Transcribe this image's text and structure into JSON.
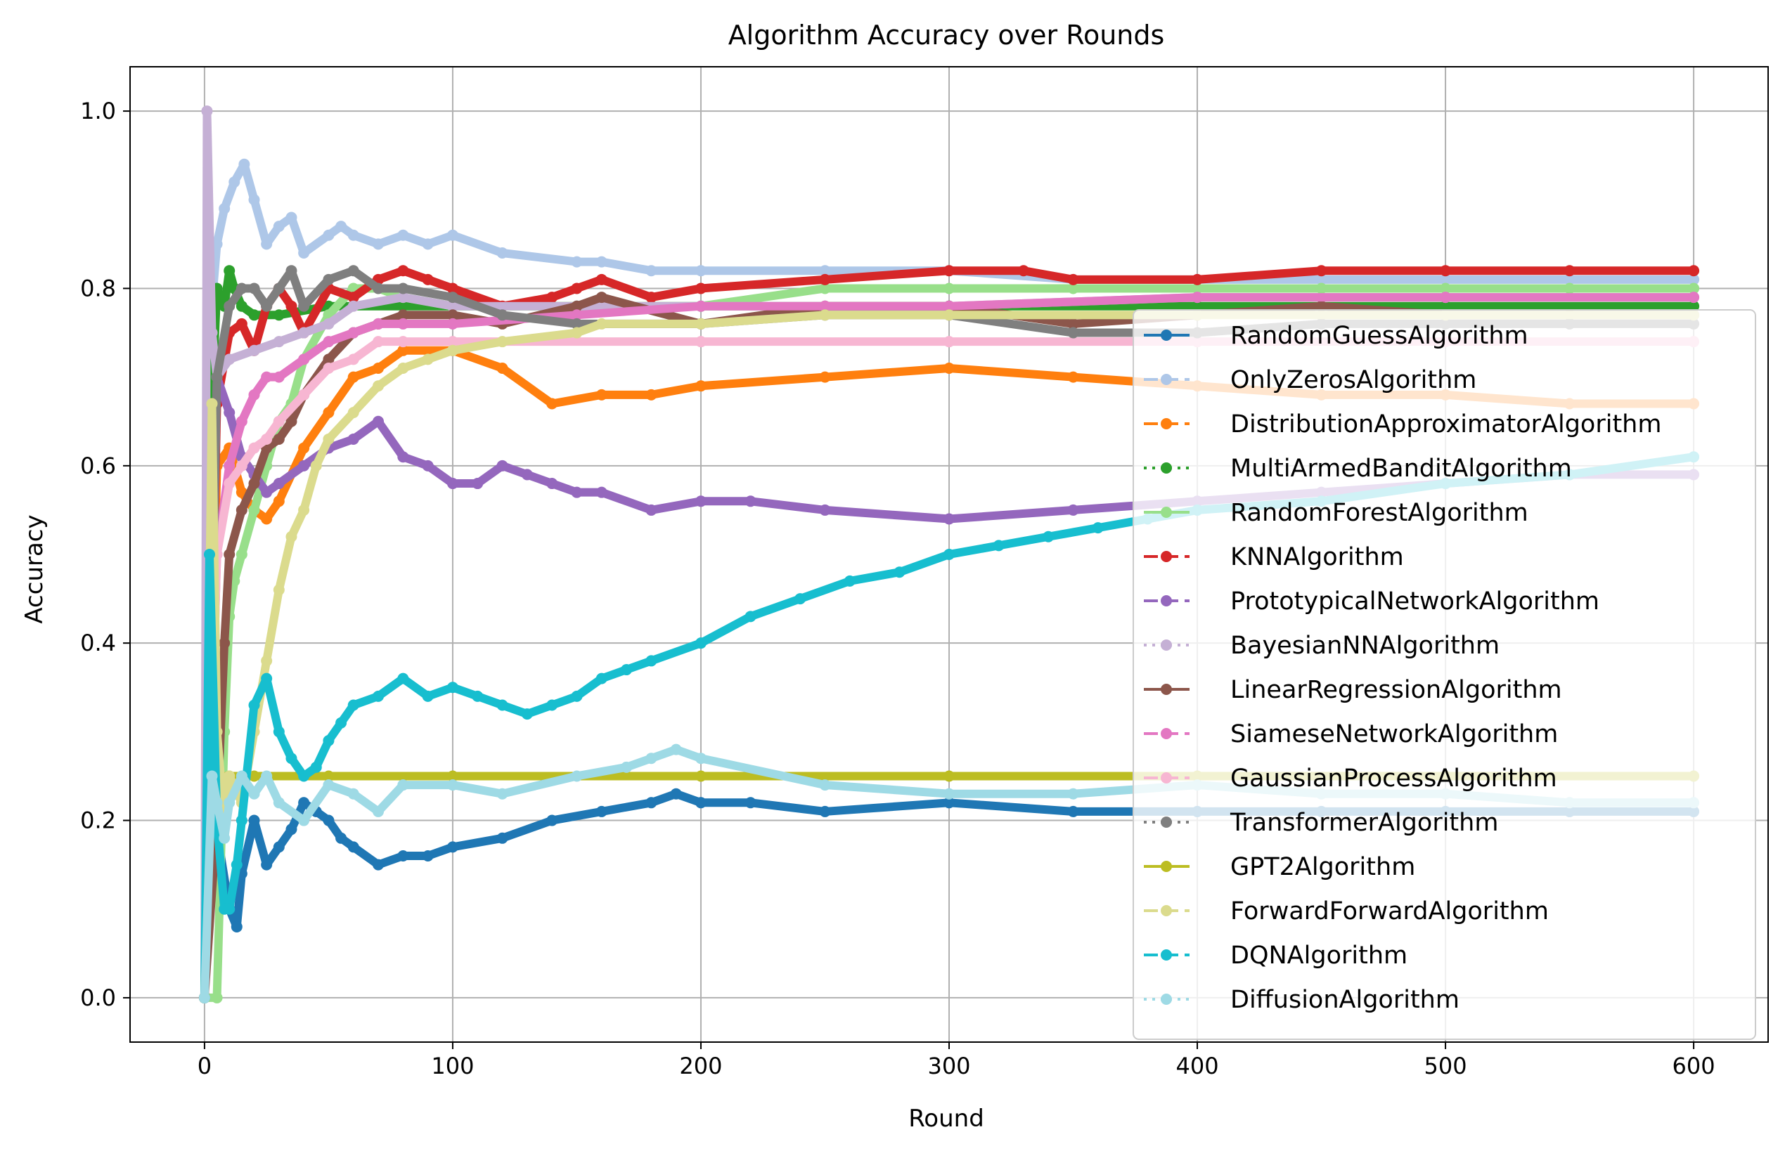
{
  "chart_data": {
    "type": "line",
    "title": "Algorithm Accuracy over Rounds",
    "xlabel": "Round",
    "ylabel": "Accuracy",
    "xlim": [
      -30,
      630
    ],
    "ylim": [
      -0.05,
      1.05
    ],
    "xticks": [
      0,
      100,
      200,
      300,
      400,
      500,
      600
    ],
    "xtick_labels": [
      "0",
      "100",
      "200",
      "300",
      "400",
      "500",
      "600"
    ],
    "yticks": [
      0.0,
      0.2,
      0.4,
      0.6,
      0.8,
      1.0
    ],
    "ytick_labels": [
      "0.0",
      "0.2",
      "0.4",
      "0.6",
      "0.8",
      "1.0"
    ],
    "grid": true,
    "legend_position": "right",
    "series": [
      {
        "name": "RandomGuessAlgorithm",
        "color": "#1f77b4",
        "linestyle": "solid",
        "x": [
          0,
          3,
          6,
          10,
          13,
          15,
          20,
          25,
          30,
          35,
          40,
          45,
          50,
          55,
          60,
          70,
          80,
          90,
          100,
          120,
          140,
          160,
          180,
          190,
          200,
          220,
          250,
          300,
          350,
          400,
          450,
          500,
          550,
          600
        ],
        "y": [
          0,
          0.25,
          0.17,
          0.1,
          0.08,
          0.14,
          0.2,
          0.15,
          0.17,
          0.19,
          0.22,
          0.21,
          0.2,
          0.18,
          0.17,
          0.15,
          0.16,
          0.16,
          0.17,
          0.18,
          0.2,
          0.21,
          0.22,
          0.23,
          0.22,
          0.22,
          0.21,
          0.22,
          0.21,
          0.21,
          0.21,
          0.21,
          0.21,
          0.21
        ]
      },
      {
        "name": "OnlyZerosAlgorithm",
        "color": "#aec7e8",
        "linestyle": "dashed",
        "x": [
          0,
          2,
          5,
          8,
          12,
          16,
          20,
          25,
          30,
          35,
          40,
          50,
          55,
          60,
          70,
          80,
          90,
          100,
          120,
          150,
          160,
          180,
          200,
          250,
          300,
          350,
          400,
          450,
          500,
          550,
          600
        ],
        "y": [
          0,
          0.75,
          0.85,
          0.89,
          0.92,
          0.94,
          0.9,
          0.85,
          0.87,
          0.88,
          0.84,
          0.86,
          0.87,
          0.86,
          0.85,
          0.86,
          0.85,
          0.86,
          0.84,
          0.83,
          0.83,
          0.82,
          0.82,
          0.82,
          0.82,
          0.81,
          0.81,
          0.81,
          0.81,
          0.81,
          0.81
        ]
      },
      {
        "name": "DistributionApproximatorAlgorithm",
        "color": "#ff7f0e",
        "linestyle": "dashed",
        "x": [
          0,
          5,
          10,
          15,
          20,
          25,
          30,
          40,
          50,
          60,
          70,
          80,
          100,
          120,
          140,
          160,
          180,
          200,
          250,
          300,
          350,
          400,
          450,
          500,
          550,
          600
        ],
        "y": [
          0,
          0.6,
          0.62,
          0.57,
          0.55,
          0.54,
          0.56,
          0.62,
          0.66,
          0.7,
          0.71,
          0.73,
          0.73,
          0.71,
          0.67,
          0.68,
          0.68,
          0.69,
          0.7,
          0.71,
          0.7,
          0.69,
          0.68,
          0.68,
          0.67,
          0.67
        ]
      },
      {
        "name": "MultiArmedBanditAlgorithm",
        "color": "#2ca02c",
        "linestyle": "dotted",
        "x": [
          0,
          3,
          5,
          8,
          10,
          12,
          15,
          20,
          30,
          50,
          100,
          200,
          300,
          400,
          500,
          600
        ],
        "y": [
          0,
          0.67,
          0.8,
          0.78,
          0.82,
          0.8,
          0.78,
          0.77,
          0.77,
          0.78,
          0.78,
          0.78,
          0.78,
          0.78,
          0.78,
          0.78
        ]
      },
      {
        "name": "RandomForestAlgorithm",
        "color": "#98df8a",
        "linestyle": "solid",
        "x": [
          0,
          5,
          8,
          10,
          12,
          15,
          20,
          25,
          30,
          35,
          40,
          50,
          60,
          70,
          80,
          100,
          150,
          200,
          250,
          300,
          350,
          400,
          450,
          500,
          550,
          600
        ],
        "y": [
          0,
          0.0,
          0.3,
          0.43,
          0.47,
          0.5,
          0.55,
          0.6,
          0.65,
          0.67,
          0.72,
          0.77,
          0.8,
          0.8,
          0.79,
          0.78,
          0.78,
          0.78,
          0.8,
          0.8,
          0.8,
          0.8,
          0.8,
          0.8,
          0.8,
          0.8
        ]
      },
      {
        "name": "KNNAlgorithm",
        "color": "#d62728",
        "linestyle": "dashed",
        "x": [
          0,
          5,
          10,
          15,
          20,
          25,
          30,
          35,
          40,
          50,
          60,
          70,
          80,
          90,
          100,
          120,
          140,
          150,
          160,
          180,
          200,
          250,
          300,
          330,
          350,
          400,
          450,
          500,
          550,
          600
        ],
        "y": [
          0,
          0.67,
          0.75,
          0.76,
          0.73,
          0.78,
          0.8,
          0.78,
          0.75,
          0.8,
          0.79,
          0.81,
          0.82,
          0.81,
          0.8,
          0.78,
          0.79,
          0.8,
          0.81,
          0.79,
          0.8,
          0.81,
          0.82,
          0.82,
          0.81,
          0.81,
          0.82,
          0.82,
          0.82,
          0.82
        ]
      },
      {
        "name": "PrototypicalNetworkAlgorithm",
        "color": "#9467bd",
        "linestyle": "dashed",
        "x": [
          0,
          5,
          10,
          15,
          20,
          25,
          30,
          40,
          50,
          60,
          70,
          80,
          90,
          100,
          110,
          120,
          130,
          140,
          150,
          160,
          180,
          200,
          220,
          250,
          300,
          350,
          400,
          450,
          500,
          550,
          600
        ],
        "y": [
          0,
          0.7,
          0.66,
          0.61,
          0.59,
          0.57,
          0.58,
          0.6,
          0.62,
          0.63,
          0.65,
          0.61,
          0.6,
          0.58,
          0.58,
          0.6,
          0.59,
          0.58,
          0.57,
          0.57,
          0.55,
          0.56,
          0.56,
          0.55,
          0.54,
          0.55,
          0.56,
          0.57,
          0.58,
          0.59,
          0.59
        ]
      },
      {
        "name": "BayesianNNAlgorithm",
        "color": "#c5b0d5",
        "linestyle": "dotted",
        "x": [
          0,
          1,
          3,
          5,
          10,
          20,
          30,
          40,
          50,
          60,
          80,
          100,
          150,
          200,
          300,
          400,
          500,
          600
        ],
        "y": [
          0,
          1.0,
          0.75,
          0.7,
          0.72,
          0.73,
          0.74,
          0.75,
          0.76,
          0.78,
          0.79,
          0.78,
          0.78,
          0.78,
          0.78,
          0.79,
          0.79,
          0.79
        ]
      },
      {
        "name": "LinearRegressionAlgorithm",
        "color": "#8c564b",
        "linestyle": "solid",
        "x": [
          0,
          5,
          8,
          10,
          15,
          20,
          25,
          30,
          35,
          40,
          50,
          60,
          70,
          80,
          100,
          120,
          150,
          160,
          200,
          250,
          300,
          350,
          400,
          450,
          500,
          550,
          600
        ],
        "y": [
          0,
          0.2,
          0.4,
          0.5,
          0.55,
          0.58,
          0.62,
          0.63,
          0.65,
          0.68,
          0.72,
          0.75,
          0.76,
          0.77,
          0.77,
          0.76,
          0.78,
          0.79,
          0.76,
          0.78,
          0.78,
          0.76,
          0.77,
          0.78,
          0.77,
          0.77,
          0.77
        ]
      },
      {
        "name": "SiameseNetworkAlgorithm",
        "color": "#e377c2",
        "linestyle": "dashed",
        "x": [
          0,
          5,
          10,
          15,
          20,
          25,
          30,
          40,
          50,
          60,
          70,
          80,
          100,
          150,
          200,
          250,
          300,
          400,
          500,
          600
        ],
        "y": [
          0,
          0.5,
          0.6,
          0.65,
          0.68,
          0.7,
          0.7,
          0.72,
          0.74,
          0.75,
          0.76,
          0.76,
          0.76,
          0.77,
          0.78,
          0.78,
          0.78,
          0.79,
          0.79,
          0.79
        ]
      },
      {
        "name": "GaussianProcessAlgorithm",
        "color": "#f7b6d2",
        "linestyle": "dashed",
        "x": [
          0,
          5,
          10,
          15,
          20,
          25,
          30,
          40,
          50,
          60,
          70,
          80,
          100,
          200,
          300,
          400,
          500,
          600
        ],
        "y": [
          0,
          0.5,
          0.58,
          0.6,
          0.62,
          0.63,
          0.65,
          0.68,
          0.71,
          0.72,
          0.74,
          0.74,
          0.74,
          0.74,
          0.74,
          0.74,
          0.74,
          0.74
        ]
      },
      {
        "name": "TransformerAlgorithm",
        "color": "#7f7f7f",
        "linestyle": "dotted",
        "x": [
          0,
          5,
          10,
          15,
          20,
          25,
          30,
          35,
          40,
          50,
          60,
          70,
          80,
          100,
          120,
          150,
          200,
          250,
          300,
          350,
          400,
          450,
          500,
          550,
          600
        ],
        "y": [
          0,
          0.7,
          0.78,
          0.8,
          0.8,
          0.78,
          0.8,
          0.82,
          0.78,
          0.81,
          0.82,
          0.8,
          0.8,
          0.79,
          0.77,
          0.76,
          0.76,
          0.77,
          0.77,
          0.75,
          0.75,
          0.76,
          0.76,
          0.76,
          0.76
        ]
      },
      {
        "name": "GPT2Algorithm",
        "color": "#bcbd22",
        "linestyle": "solid",
        "x": [
          0,
          2,
          5,
          10,
          20,
          50,
          100,
          200,
          300,
          400,
          500,
          600
        ],
        "y": [
          0,
          0.25,
          0.25,
          0.25,
          0.25,
          0.25,
          0.25,
          0.25,
          0.25,
          0.25,
          0.25,
          0.25
        ]
      },
      {
        "name": "ForwardForwardAlgorithm",
        "color": "#dbdb8d",
        "linestyle": "dashed",
        "x": [
          0,
          3,
          5,
          8,
          10,
          15,
          20,
          25,
          30,
          35,
          40,
          45,
          50,
          60,
          70,
          80,
          90,
          100,
          120,
          150,
          160,
          200,
          250,
          300,
          400,
          500,
          600
        ],
        "y": [
          0,
          0.67,
          0.3,
          0.2,
          0.25,
          0.22,
          0.3,
          0.38,
          0.46,
          0.52,
          0.55,
          0.6,
          0.63,
          0.66,
          0.69,
          0.71,
          0.72,
          0.73,
          0.74,
          0.75,
          0.76,
          0.76,
          0.77,
          0.77,
          0.77,
          0.77,
          0.77
        ]
      },
      {
        "name": "DQNAlgorithm",
        "color": "#17becf",
        "linestyle": "dashed",
        "x": [
          0,
          2,
          5,
          8,
          10,
          13,
          15,
          20,
          25,
          30,
          35,
          40,
          45,
          50,
          55,
          60,
          70,
          80,
          90,
          100,
          110,
          120,
          130,
          140,
          150,
          160,
          170,
          180,
          200,
          220,
          240,
          260,
          280,
          300,
          320,
          340,
          360,
          380,
          400,
          450,
          500,
          550,
          600
        ],
        "y": [
          0,
          0.5,
          0.2,
          0.1,
          0.1,
          0.15,
          0.2,
          0.33,
          0.36,
          0.3,
          0.27,
          0.25,
          0.26,
          0.29,
          0.31,
          0.33,
          0.34,
          0.36,
          0.34,
          0.35,
          0.34,
          0.33,
          0.32,
          0.33,
          0.34,
          0.36,
          0.37,
          0.38,
          0.4,
          0.43,
          0.45,
          0.47,
          0.48,
          0.5,
          0.51,
          0.52,
          0.53,
          0.54,
          0.55,
          0.56,
          0.58,
          0.59,
          0.61
        ]
      },
      {
        "name": "DiffusionAlgorithm",
        "color": "#9edae5",
        "linestyle": "dotted",
        "x": [
          0,
          3,
          5,
          8,
          10,
          15,
          20,
          25,
          30,
          40,
          50,
          60,
          70,
          80,
          100,
          120,
          150,
          170,
          180,
          190,
          200,
          250,
          300,
          350,
          400,
          450,
          500,
          550,
          600
        ],
        "y": [
          0,
          0.25,
          0.22,
          0.18,
          0.22,
          0.25,
          0.23,
          0.25,
          0.22,
          0.2,
          0.24,
          0.23,
          0.21,
          0.24,
          0.24,
          0.23,
          0.25,
          0.26,
          0.27,
          0.28,
          0.27,
          0.24,
          0.23,
          0.23,
          0.24,
          0.23,
          0.23,
          0.22,
          0.22
        ]
      }
    ]
  }
}
